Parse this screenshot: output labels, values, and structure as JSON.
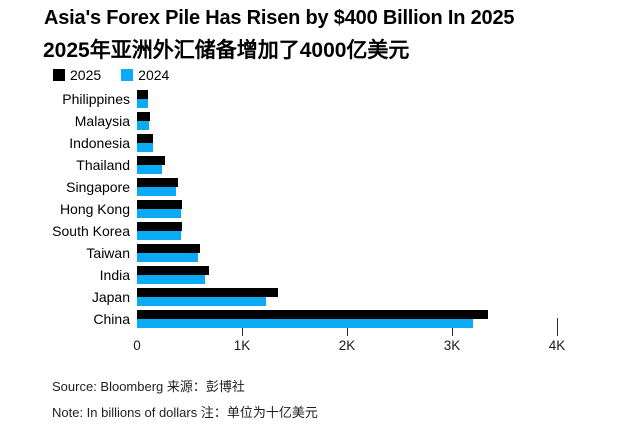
{
  "header": {
    "title": "Asia's Forex Pile Has Risen by $400 Billion In 2025",
    "subtitle": "2025年亚洲外汇储备增加了4000亿美元"
  },
  "legend": {
    "items": [
      {
        "label": "2025",
        "color": "#000000"
      },
      {
        "label": "2024",
        "color": "#0aabf4"
      }
    ]
  },
  "chart_data": {
    "type": "bar",
    "orientation": "horizontal",
    "title": "Asia's Forex Pile Has Risen by $400 Billion In 2025",
    "subtitle": "2025年亚洲外汇储备增加了4000亿美元",
    "categories": [
      "Philippines",
      "Malaysia",
      "Indonesia",
      "Thailand",
      "Singapore",
      "Hong Kong",
      "South Korea",
      "Taiwan",
      "India",
      "Japan",
      "China"
    ],
    "series": [
      {
        "name": "2025",
        "color": "#000000",
        "values": [
          109,
          125,
          150,
          265,
          393,
          424,
          426,
          598,
          690,
          1340,
          3340
        ]
      },
      {
        "name": "2024",
        "color": "#0aabf4",
        "values": [
          106,
          116,
          156,
          237,
          371,
          421,
          416,
          577,
          645,
          1231,
          3202
        ]
      }
    ],
    "xlabel": "",
    "ylabel": "",
    "xlim": [
      0,
      4000
    ],
    "xticks": [
      {
        "label": "0",
        "value": 0
      },
      {
        "label": "1K",
        "value": 1000
      },
      {
        "label": "2K",
        "value": 2000
      },
      {
        "label": "3K",
        "value": 3000
      },
      {
        "label": "4K",
        "value": 4000
      }
    ],
    "grid": false,
    "legend_position": "top-left",
    "unit": "billions of dollars"
  },
  "footer": {
    "source": "Source: Bloomberg 来源：彭博社",
    "note": "Note: In billions of dollars 注：单位为十亿美元"
  }
}
